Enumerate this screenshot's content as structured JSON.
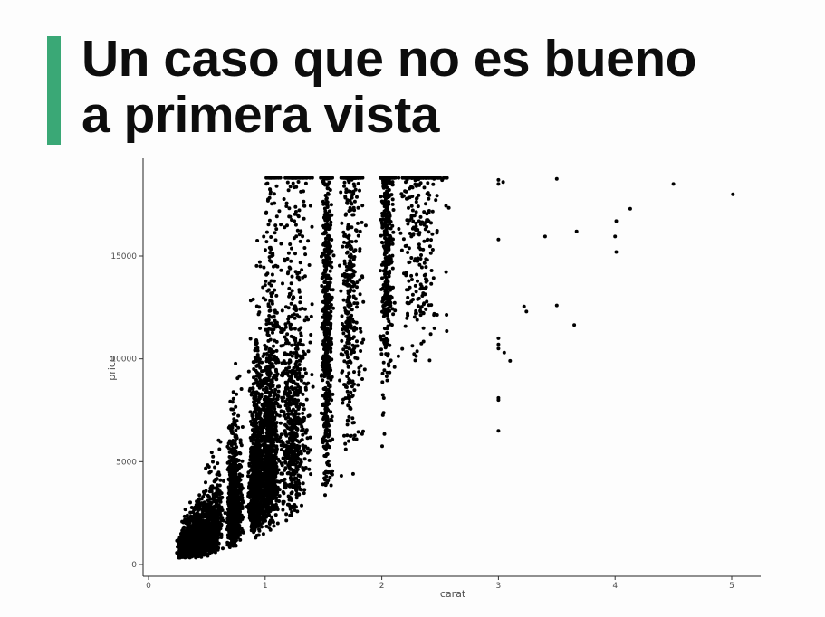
{
  "slide": {
    "title_line1": "Un caso que no es bueno",
    "title_line2": "a primera vista",
    "accent_color": "#3aa876"
  },
  "chart_data": {
    "type": "scatter",
    "title": "",
    "xlabel": "carat",
    "ylabel": "price",
    "xlim": [
      0,
      5.25
    ],
    "ylim": [
      0,
      18823
    ],
    "x_ticks": [
      0,
      1,
      2,
      3,
      4,
      5
    ],
    "y_ticks": [
      0,
      5000,
      10000,
      15000
    ],
    "x_tick_labels": [
      "0",
      "1",
      "2",
      "3",
      "4",
      "5"
    ],
    "y_tick_labels": [
      "0",
      "5000",
      "10000",
      "15000"
    ],
    "grid": false,
    "point_color": "#000000",
    "dense_regions": [
      {
        "x": [
          0.2,
          0.5
        ],
        "y": [
          326,
          1800
        ],
        "note": "main mass"
      },
      {
        "x": [
          0.5,
          1.0
        ],
        "y": [
          1000,
          6000
        ]
      },
      {
        "x": [
          1.0,
          1.5
        ],
        "y": [
          2500,
          18800
        ]
      },
      {
        "x": [
          1.5,
          2.0
        ],
        "y": [
          3000,
          18800
        ]
      },
      {
        "x": [
          2.0,
          2.6
        ],
        "y": [
          5000,
          18800
        ]
      }
    ],
    "outliers": [
      {
        "x": 3.0,
        "y": 18700
      },
      {
        "x": 3.0,
        "y": 18500
      },
      {
        "x": 3.0,
        "y": 15800
      },
      {
        "x": 3.0,
        "y": 11000
      },
      {
        "x": 3.0,
        "y": 10700
      },
      {
        "x": 3.0,
        "y": 10500
      },
      {
        "x": 3.0,
        "y": 8100
      },
      {
        "x": 3.0,
        "y": 8000
      },
      {
        "x": 3.0,
        "y": 6500
      },
      {
        "x": 3.04,
        "y": 18600
      },
      {
        "x": 3.05,
        "y": 10300
      },
      {
        "x": 3.1,
        "y": 9900
      },
      {
        "x": 3.22,
        "y": 12550
      },
      {
        "x": 3.24,
        "y": 12300
      },
      {
        "x": 3.4,
        "y": 15950
      },
      {
        "x": 3.5,
        "y": 18750
      },
      {
        "x": 3.5,
        "y": 12600
      },
      {
        "x": 3.65,
        "y": 11650
      },
      {
        "x": 3.67,
        "y": 16200
      },
      {
        "x": 4.0,
        "y": 15950
      },
      {
        "x": 4.01,
        "y": 15200
      },
      {
        "x": 4.01,
        "y": 16700
      },
      {
        "x": 4.13,
        "y": 17300
      },
      {
        "x": 4.5,
        "y": 18500
      },
      {
        "x": 5.01,
        "y": 18000
      }
    ]
  }
}
